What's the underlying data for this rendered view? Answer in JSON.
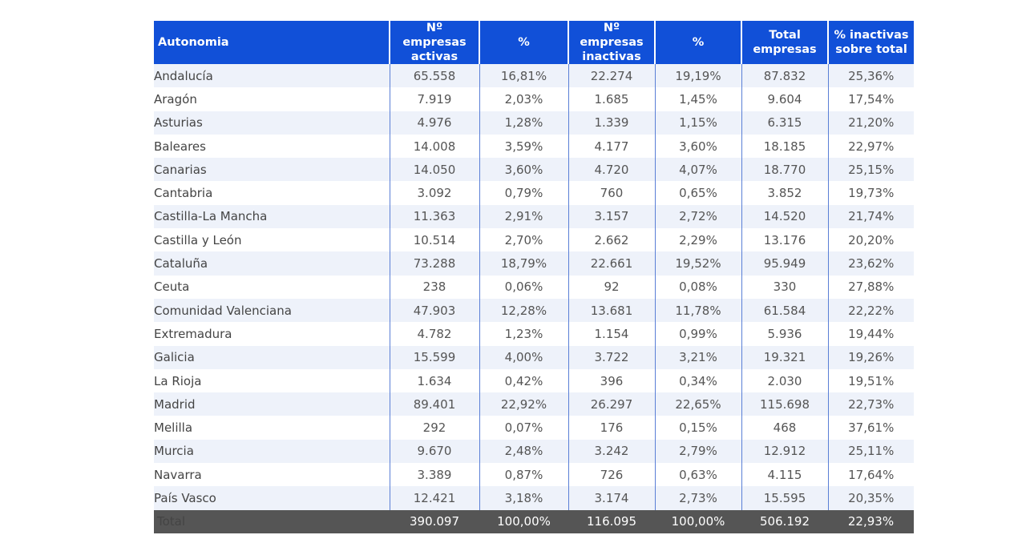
{
  "colors": {
    "header": "#1150d8",
    "total_row": "#555555",
    "stripe": "#eef2fa"
  },
  "table": {
    "headers": [
      "Autonomia",
      "Nº empresas activas",
      "%",
      "Nº empresas inactivas",
      "%",
      "Total empresas",
      "% inactivas sobre total"
    ],
    "rows": [
      [
        "Andalucía",
        "65.558",
        "16,81%",
        "22.274",
        "19,19%",
        "87.832",
        "25,36%"
      ],
      [
        "Aragón",
        "7.919",
        "2,03%",
        "1.685",
        "1,45%",
        "9.604",
        "17,54%"
      ],
      [
        "Asturias",
        "4.976",
        "1,28%",
        "1.339",
        "1,15%",
        "6.315",
        "21,20%"
      ],
      [
        "Baleares",
        "14.008",
        "3,59%",
        "4.177",
        "3,60%",
        "18.185",
        "22,97%"
      ],
      [
        "Canarias",
        "14.050",
        "3,60%",
        "4.720",
        "4,07%",
        "18.770",
        "25,15%"
      ],
      [
        "Cantabria",
        "3.092",
        "0,79%",
        "760",
        "0,65%",
        "3.852",
        "19,73%"
      ],
      [
        "Castilla-La Mancha",
        "11.363",
        "2,91%",
        "3.157",
        "2,72%",
        "14.520",
        "21,74%"
      ],
      [
        "Castilla y León",
        "10.514",
        "2,70%",
        "2.662",
        "2,29%",
        "13.176",
        "20,20%"
      ],
      [
        "Cataluña",
        "73.288",
        "18,79%",
        "22.661",
        "19,52%",
        "95.949",
        "23,62%"
      ],
      [
        "Ceuta",
        "238",
        "0,06%",
        "92",
        "0,08%",
        "330",
        "27,88%"
      ],
      [
        "Comunidad Valenciana",
        "47.903",
        "12,28%",
        "13.681",
        "11,78%",
        "61.584",
        "22,22%"
      ],
      [
        "Extremadura",
        "4.782",
        "1,23%",
        "1.154",
        "0,99%",
        "5.936",
        "19,44%"
      ],
      [
        "Galicia",
        "15.599",
        "4,00%",
        "3.722",
        "3,21%",
        "19.321",
        "19,26%"
      ],
      [
        "La Rioja",
        "1.634",
        "0,42%",
        "396",
        "0,34%",
        "2.030",
        "19,51%"
      ],
      [
        "Madrid",
        "89.401",
        "22,92%",
        "26.297",
        "22,65%",
        "115.698",
        "22,73%"
      ],
      [
        "Melilla",
        "292",
        "0,07%",
        "176",
        "0,15%",
        "468",
        "37,61%"
      ],
      [
        "Murcia",
        "9.670",
        "2,48%",
        "3.242",
        "2,79%",
        "12.912",
        "25,11%"
      ],
      [
        "Navarra",
        "3.389",
        "0,87%",
        "726",
        "0,63%",
        "4.115",
        "17,64%"
      ],
      [
        "País Vasco",
        "12.421",
        "3,18%",
        "3.174",
        "2,73%",
        "15.595",
        "20,35%"
      ]
    ],
    "total": [
      "Total",
      "390.097",
      "100,00%",
      "116.095",
      "100,00%",
      "506.192",
      "22,93%"
    ]
  }
}
